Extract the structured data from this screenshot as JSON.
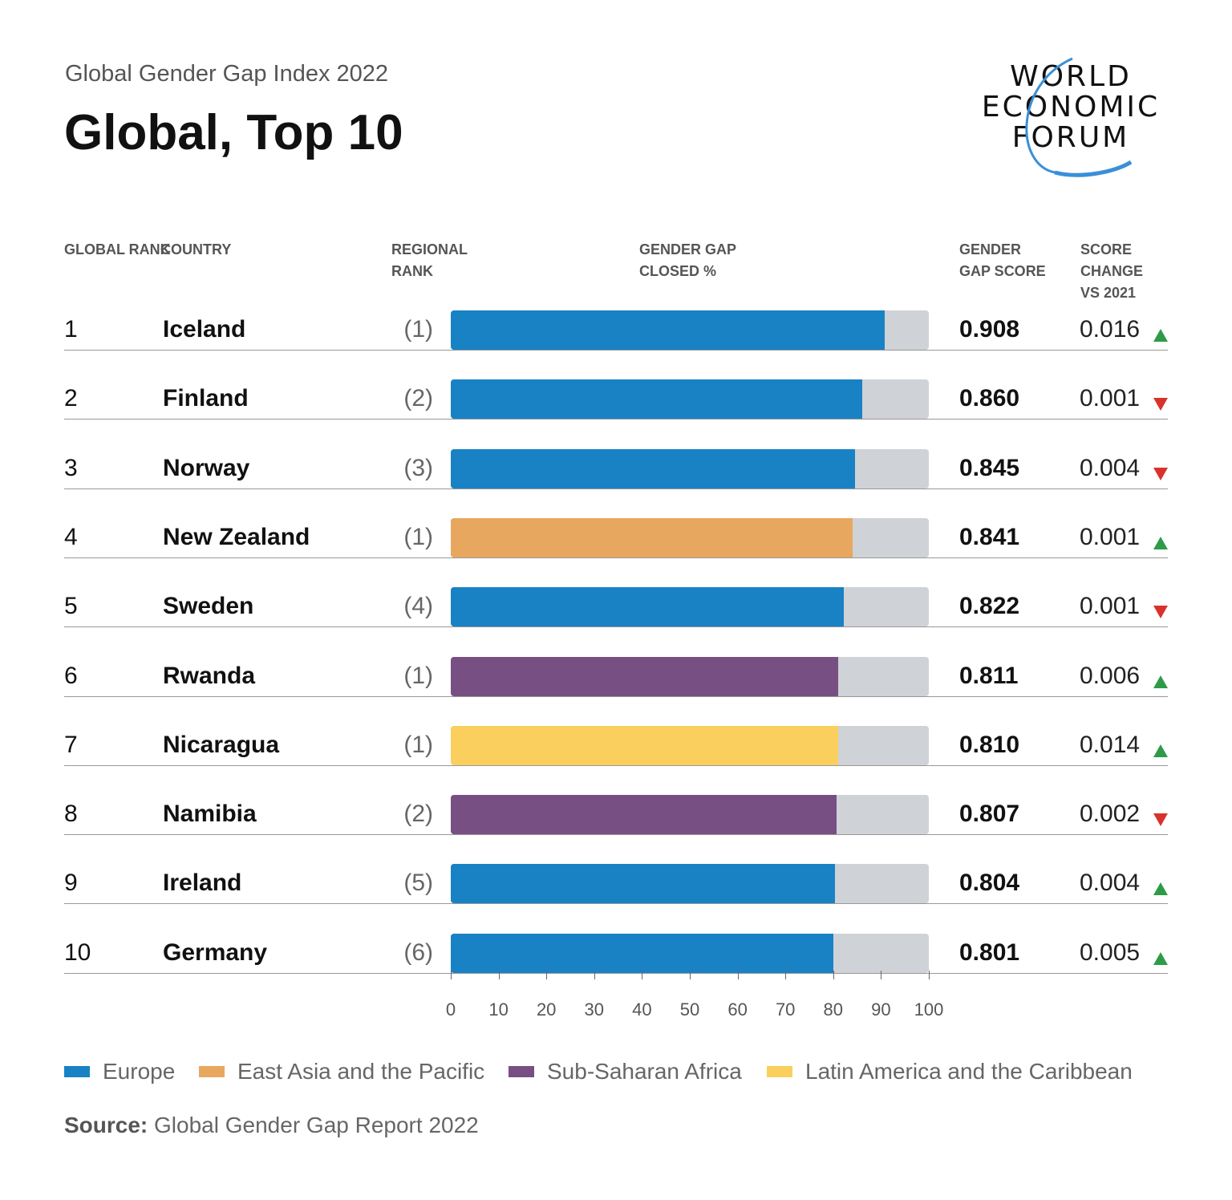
{
  "header": {
    "subtitle": "Global Gender Gap Index 2022",
    "title": "Global, Top 10"
  },
  "logo": {
    "text": [
      "WORLD",
      "ECONOMIC",
      "FORUM"
    ],
    "color": "#3a8fd9"
  },
  "chart_data": {
    "type": "bar",
    "columns": {
      "global_rank": "GLOBAL RANK",
      "country": "COUNTRY",
      "regional_rank": "REGIONAL RANK",
      "gap_closed": "GENDER GAP CLOSED %",
      "score": "GENDER GAP SCORE",
      "change": "SCORE CHANGE VS 2021"
    },
    "xlim": [
      0,
      100
    ],
    "ticks": [
      "0",
      "10",
      "20",
      "30",
      "40",
      "50",
      "60",
      "70",
      "80",
      "90",
      "100"
    ],
    "rows": [
      {
        "rank": "1",
        "country": "Iceland",
        "regional_rank": "(1)",
        "region": "Europe",
        "score": "0.908",
        "value": 90.8,
        "change": "0.016",
        "direction": "up"
      },
      {
        "rank": "2",
        "country": "Finland",
        "regional_rank": "(2)",
        "region": "Europe",
        "score": "0.860",
        "value": 86.0,
        "change": "0.001",
        "direction": "down"
      },
      {
        "rank": "3",
        "country": "Norway",
        "regional_rank": "(3)",
        "region": "Europe",
        "score": "0.845",
        "value": 84.5,
        "change": "0.004",
        "direction": "down"
      },
      {
        "rank": "4",
        "country": "New Zealand",
        "regional_rank": "(1)",
        "region": "East Asia and the Pacific",
        "score": "0.841",
        "value": 84.1,
        "change": "0.001",
        "direction": "up"
      },
      {
        "rank": "5",
        "country": "Sweden",
        "regional_rank": "(4)",
        "region": "Europe",
        "score": "0.822",
        "value": 82.2,
        "change": "0.001",
        "direction": "down"
      },
      {
        "rank": "6",
        "country": "Rwanda",
        "regional_rank": "(1)",
        "region": "Sub-Saharan Africa",
        "score": "0.811",
        "value": 81.1,
        "change": "0.006",
        "direction": "up"
      },
      {
        "rank": "7",
        "country": "Nicaragua",
        "regional_rank": "(1)",
        "region": "Latin America and the Caribbean",
        "score": "0.810",
        "value": 81.0,
        "change": "0.014",
        "direction": "up"
      },
      {
        "rank": "8",
        "country": "Namibia",
        "regional_rank": "(2)",
        "region": "Sub-Saharan Africa",
        "score": "0.807",
        "value": 80.7,
        "change": "0.002",
        "direction": "down"
      },
      {
        "rank": "9",
        "country": "Ireland",
        "regional_rank": "(5)",
        "region": "Europe",
        "score": "0.804",
        "value": 80.4,
        "change": "0.004",
        "direction": "up"
      },
      {
        "rank": "10",
        "country": "Germany",
        "regional_rank": "(6)",
        "region": "Europe",
        "score": "0.801",
        "value": 80.1,
        "change": "0.005",
        "direction": "up"
      }
    ],
    "legend": [
      {
        "name": "Europe",
        "color": "#1882c5"
      },
      {
        "name": "East Asia and the Pacific",
        "color": "#e8a75f"
      },
      {
        "name": "Sub-Saharan Africa",
        "color": "#774f82"
      },
      {
        "name": "Latin America and the Caribbean",
        "color": "#fbcf5d"
      }
    ],
    "remainder_color": "#cfd2d6",
    "up_color": "#2e9b48",
    "down_color": "#d9322c"
  },
  "source": {
    "label": "Source:",
    "text": " Global Gender Gap Report 2022"
  }
}
